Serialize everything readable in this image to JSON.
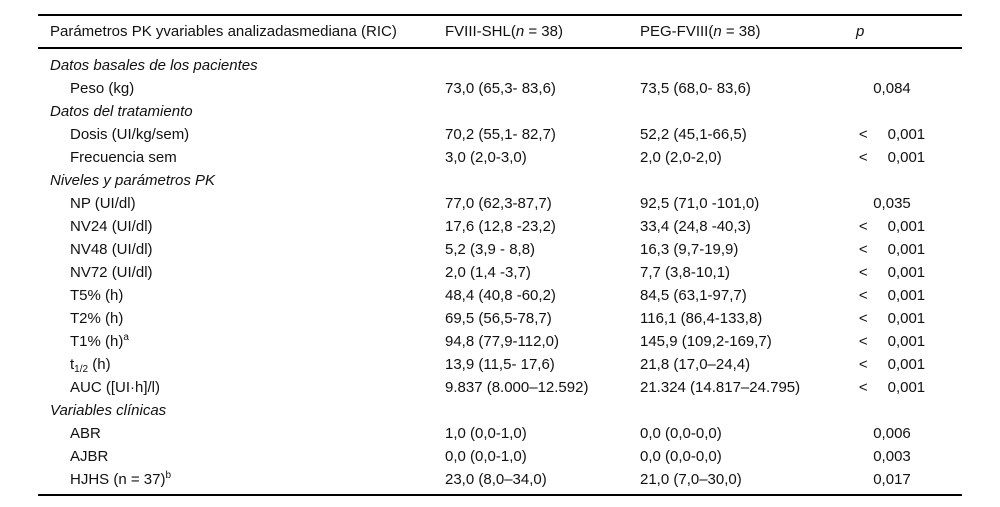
{
  "table": {
    "header": {
      "param_label": "Parámetros PK yvariables analizadasmediana (RIC)",
      "fviii_pre": "FVIII-SHL(",
      "fviii_n": "n",
      "fviii_post": " = 38)",
      "peg_pre": "PEG-FVIII(",
      "peg_n": "n",
      "peg_post": " = 38)",
      "p_label": "p"
    },
    "rows": [
      {
        "type": "section",
        "label": "Datos basales de los pacientes"
      },
      {
        "type": "data",
        "label": "Peso (kg)",
        "fviii": "73,0 (65,3- 83,6)",
        "peg": "73,5 (68,0- 83,6)",
        "p": "0,084"
      },
      {
        "type": "section",
        "label": "Datos del tratamiento"
      },
      {
        "type": "data",
        "label": "Dosis (UI/kg/sem)",
        "fviii": "70,2 (55,1- 82,7)",
        "peg": "52,2 (45,1-66,5)",
        "p_sign": "<",
        "p": "0,001"
      },
      {
        "type": "data",
        "label": "Frecuencia sem",
        "fviii": "3,0 (2,0-3,0)",
        "peg": "2,0 (2,0-2,0)",
        "p_sign": "<",
        "p": "0,001"
      },
      {
        "type": "section",
        "label": "Niveles y parámetros PK"
      },
      {
        "type": "data",
        "label": "NP (UI/dl)",
        "fviii": "77,0 (62,3-87,7)",
        "peg": "92,5 (71,0 -101,0)",
        "p": "0,035"
      },
      {
        "type": "data",
        "label": "NV24 (UI/dl)",
        "fviii": "17,6 (12,8 -23,2)",
        "peg": "33,4 (24,8 -40,3)",
        "p_sign": "<",
        "p": "0,001"
      },
      {
        "type": "data",
        "label": "NV48 (UI/dl)",
        "fviii": "5,2 (3,9 - 8,8)",
        "peg": "16,3 (9,7-19,9)",
        "p_sign": "<",
        "p": "0,001"
      },
      {
        "type": "data",
        "label": "NV72 (UI/dl)",
        "fviii": "2,0 (1,4 -3,7)",
        "peg": "7,7 (3,8-10,1)",
        "p_sign": "<",
        "p": "0,001"
      },
      {
        "type": "data",
        "label": "T5% (h)",
        "fviii": "48,4 (40,8 -60,2)",
        "peg": "84,5 (63,1-97,7)",
        "p_sign": "<",
        "p": "0,001"
      },
      {
        "type": "data",
        "label": "T2% (h)",
        "fviii": "69,5 (56,5-78,7)",
        "peg": "116,1 (86,4-133,8)",
        "p_sign": "<",
        "p": "0,001"
      },
      {
        "type": "data",
        "label": "T1% (h)",
        "sup": "a",
        "fviii": "94,8 (77,9-112,0)",
        "peg": "145,9 (109,2-169,7)",
        "p_sign": "<",
        "p": "0,001"
      },
      {
        "type": "data",
        "label": "t",
        "sub": "1/2",
        "label2": " (h)",
        "fviii": "13,9 (11,5- 17,6)",
        "peg": "21,8 (17,0–24,4)",
        "p_sign": "<",
        "p": "0,001"
      },
      {
        "type": "data",
        "label": "AUC ([UI·h]/l)",
        "fviii": "9.837 (8.000–12.592)",
        "peg": "21.324 (14.817–24.795)",
        "p_sign": "<",
        "p": "0,001"
      },
      {
        "type": "section",
        "label": "Variables clínicas"
      },
      {
        "type": "data",
        "label": "ABR",
        "fviii": "1,0 (0,0-1,0)",
        "peg": "0,0 (0,0-0,0)",
        "p": "0,006"
      },
      {
        "type": "data",
        "label": "AJBR",
        "fviii": "0,0 (0,0-1,0)",
        "peg": "0,0 (0,0-0,0)",
        "p": "0,003"
      },
      {
        "type": "data",
        "label": "HJHS (n = 37)",
        "sup": "b",
        "fviii": "23,0 (8,0–34,0)",
        "peg": "21,0 (7,0–30,0)",
        "p": "0,017"
      }
    ]
  }
}
